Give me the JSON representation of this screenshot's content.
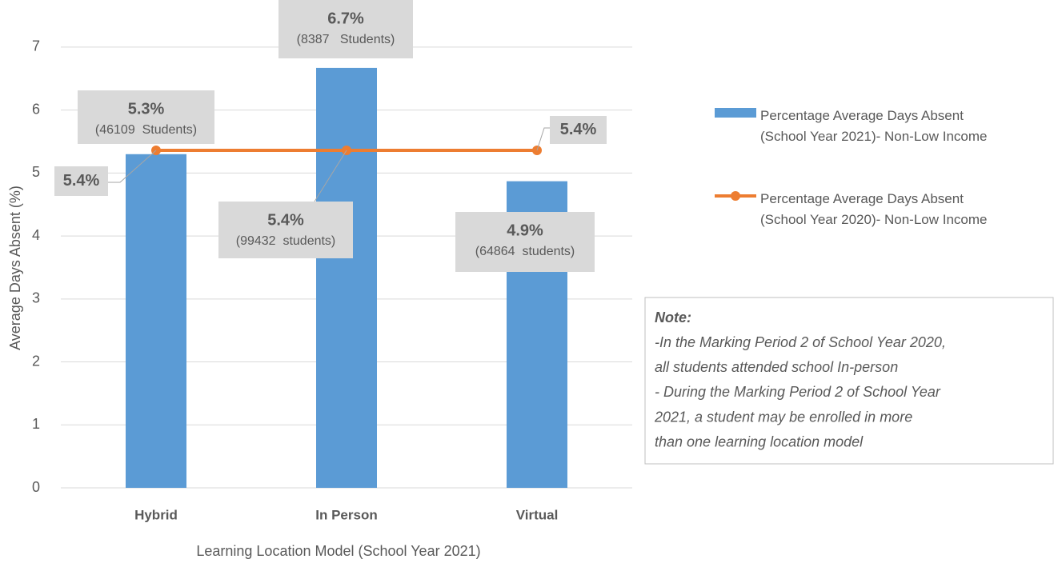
{
  "chart_data": {
    "type": "bar",
    "x_label": "Learning Location Model (School Year 2021)",
    "y_label": "Average Days Absent (%)",
    "categories": [
      "Hybrid",
      "In Person",
      "Virtual"
    ],
    "ylim": [
      0,
      7.05
    ],
    "yticks": [
      0,
      1,
      2,
      3,
      4,
      5,
      6,
      7
    ],
    "grid": true,
    "series": [
      {
        "name": "Percentage Average Days Absent (School Year 2021)- Non-Low Income",
        "type": "bar",
        "color": "#5b9bd5",
        "values": [
          5.3,
          6.67,
          4.87
        ],
        "value_labels": [
          "5.3%",
          "6.7%",
          "4.9%"
        ],
        "label_notes": [
          "(46109  Students)",
          "(8387   Students)",
          "(64864  students)"
        ]
      },
      {
        "name": "Percentage Average Days Absent (School Year 2020)- Non-Low Income",
        "type": "line",
        "color": "#ed7d31",
        "values": [
          5.36,
          5.36,
          5.36
        ],
        "value_labels": [
          "5.4%",
          "5.4%",
          "5.4%"
        ],
        "label_notes": [
          null,
          "(99432  students)",
          null
        ]
      }
    ],
    "note": {
      "title": "Note:",
      "lines": [
        "-In the Marking Period 2 of School Year 2020,",
        "all students attended school In-person",
        "- During the Marking Period 2 of School Year",
        "2021, a student may be enrolled in more",
        "than one learning location model"
      ]
    }
  }
}
